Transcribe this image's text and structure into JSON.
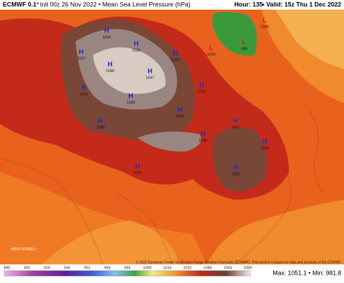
{
  "header": {
    "model": "ECMWF 0.1°",
    "init": "Init 00z 26 Nov 2022 • Mean Sea Level Pressure (hPa)",
    "hour": "Hour: 135",
    "valid": "• Valid: 15z Thu 1 Dec 2022"
  },
  "centers": [
    {
      "kind": "H",
      "value": 1044
    },
    {
      "kind": "H",
      "value": 1037
    },
    {
      "kind": "H",
      "value": 1048
    },
    {
      "kind": "H",
      "value": 1047
    },
    {
      "kind": "H",
      "value": 1032
    },
    {
      "kind": "H",
      "value": 1030
    },
    {
      "kind": "H",
      "value": 1031
    },
    {
      "kind": "H",
      "value": 1039
    },
    {
      "kind": "H",
      "value": 1038
    },
    {
      "kind": "H",
      "value": 1031
    },
    {
      "kind": "H",
      "value": 1032
    },
    {
      "kind": "H",
      "value": 1038
    },
    {
      "kind": "H",
      "value": 1036
    },
    {
      "kind": "H",
      "value": 1035
    },
    {
      "kind": "H",
      "value": 1036
    },
    {
      "kind": "H",
      "value": 1029
    },
    {
      "kind": "L",
      "value": 1000
    },
    {
      "kind": "L",
      "value": 989
    },
    {
      "kind": "L",
      "value": 1003
    }
  ],
  "colorbar": {
    "ticks": [
      880,
      900,
      920,
      936,
      952,
      968,
      984,
      1000,
      1016,
      1032,
      1048,
      1064,
      1080
    ]
  },
  "footer": {
    "copyright": "© 2022 European Centre for Medium-Range Weather Forecasts (ECMWF). This service is based on data and products of the ECMWF.",
    "stats": "Max: 1051.1 • Min: 981.8"
  }
}
